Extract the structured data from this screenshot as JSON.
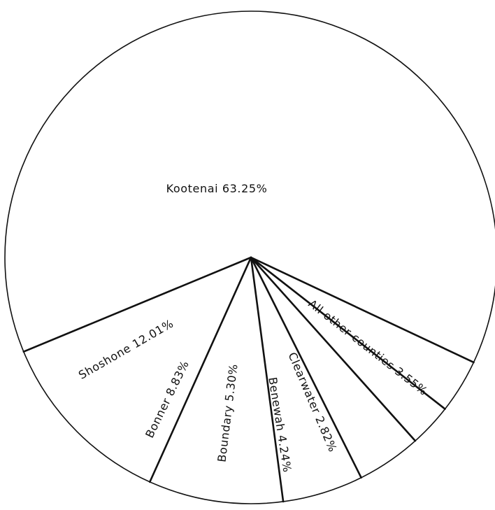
{
  "chart_data": {
    "type": "pie",
    "title": "",
    "slices": [
      {
        "label": "Kootenai",
        "value": 63.25,
        "display": "Kootenai 63.25%"
      },
      {
        "label": "All other counties",
        "value": 3.55,
        "display": "All other counties 3.55%"
      },
      {
        "label": "Clearwater",
        "value": 2.82,
        "display": "Clearwater 2.82%"
      },
      {
        "label": "Benewah",
        "value": 4.24,
        "display": "Benewah 4.24%"
      },
      {
        "label": "Boundary",
        "value": 5.3,
        "display": "Boundary 5.30%"
      },
      {
        "label": "Bonner",
        "value": 8.83,
        "display": "Bonner 8.83%"
      },
      {
        "label": "Shoshone",
        "value": 12.01,
        "display": "Shoshone 12.01%"
      }
    ],
    "colors": {
      "stroke": "#111111",
      "fill": "#ffffff",
      "text": "#111111"
    }
  }
}
